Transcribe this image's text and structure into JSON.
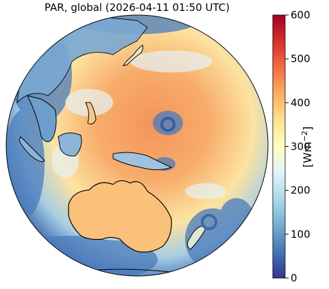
{
  "title": "PAR, global (2026-04-11 01:50 UTC)",
  "colorbar": {
    "label": "[Wm",
    "label_exp": "−2",
    "label_close": "]",
    "min": 0,
    "max": 600,
    "ticks": [
      0,
      100,
      200,
      300,
      400,
      500,
      600
    ],
    "tick_labels": [
      "0",
      "100",
      "200",
      "300",
      "400",
      "500",
      "600"
    ],
    "colormap": [
      "#313695",
      "#4575b4",
      "#74add1",
      "#abd9e9",
      "#e0f3f8",
      "#ffffbf",
      "#fee090",
      "#fdae61",
      "#f46d43",
      "#d73027",
      "#a50026"
    ]
  },
  "map": {
    "projection": "orthographic",
    "variable": "PAR",
    "colors": {
      "ocean_clear": "#f6a667",
      "cloud_low": "#3f6fb0",
      "coastline": "#000000"
    }
  }
}
